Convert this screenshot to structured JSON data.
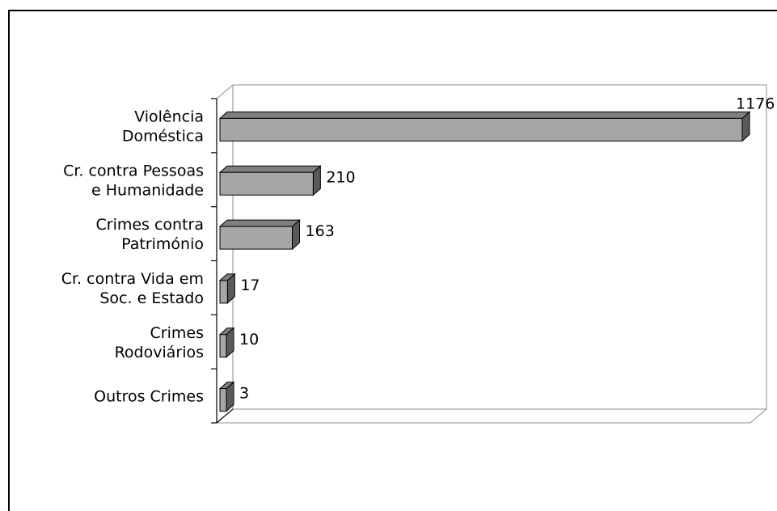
{
  "chart_data": {
    "type": "bar",
    "orientation": "horizontal",
    "style": "3d",
    "categories": [
      [
        "Violência",
        "Doméstica"
      ],
      [
        "Cr. contra Pessoas",
        "e Humanidade"
      ],
      [
        "Crimes contra",
        "Património"
      ],
      [
        "Cr. contra Vida em",
        "Soc. e Estado"
      ],
      [
        "Crimes",
        "Rodoviários"
      ],
      [
        "Outros Crimes"
      ]
    ],
    "values": [
      1176,
      210,
      163,
      17,
      10,
      3
    ],
    "data_labels": [
      "1176",
      "210",
      "163",
      "17",
      "10",
      "3"
    ],
    "xlim": [
      0,
      1176
    ],
    "grid": false,
    "legend": false,
    "colors": {
      "bar_front": "#a6a6a6",
      "bar_top": "#7f7f7f",
      "bar_side": "#5a5a5a",
      "wall_stroke": "#8c8c8c",
      "axis": "#000000"
    }
  }
}
